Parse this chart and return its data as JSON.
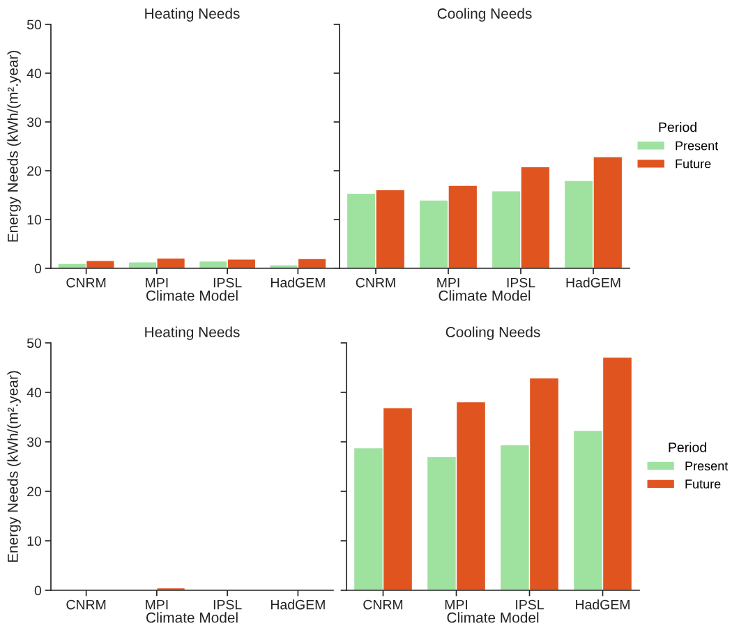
{
  "chart_data": [
    {
      "type": "bar",
      "title": "Heating Needs",
      "xlabel": "Climate Model",
      "ylabel": "Energy Needs (kWh/(m².year)",
      "categories": [
        "CNRM",
        "MPI",
        "IPSL",
        "HadGEM"
      ],
      "series": [
        {
          "color": "#9fe2a0",
          "values": [
            1.0,
            1.3,
            1.5,
            0.7
          ]
        },
        {
          "color": "#e05420",
          "values": [
            1.6,
            2.1,
            1.9,
            2.0
          ]
        }
      ],
      "ylim": [
        0,
        50
      ],
      "yticks": [
        0,
        10,
        20,
        30,
        40,
        50
      ],
      "grid": false
    },
    {
      "type": "bar",
      "title": "Cooling Needs",
      "xlabel": "Climate Model",
      "legend_title": "Period",
      "categories": [
        "CNRM",
        "MPI",
        "IPSL",
        "HadGEM"
      ],
      "series": [
        {
          "name": "Present",
          "color": "#9fe2a0",
          "values": [
            15.4,
            14.0,
            15.9,
            18.0
          ]
        },
        {
          "name": "Future",
          "color": "#e05420",
          "values": [
            16.1,
            17.0,
            20.8,
            22.9
          ]
        }
      ],
      "ylim": [
        0,
        50
      ],
      "yticks": [
        0,
        10,
        20,
        30,
        40,
        50
      ],
      "tick_labels": "x",
      "grid": false,
      "legend": "right"
    },
    {
      "type": "bar",
      "title": "Heating Needs",
      "xlabel": "Climate Model",
      "ylabel": "Energy Needs (kWh/(m².year)",
      "categories": [
        "CNRM",
        "MPI",
        "IPSL",
        "HadGEM"
      ],
      "series": [
        {
          "color": "#9fe2a0",
          "values": [
            0,
            0,
            0,
            0
          ]
        },
        {
          "color": "#e05420",
          "values": [
            0,
            0.5,
            0,
            0
          ]
        }
      ],
      "ylim": [
        0,
        50
      ],
      "yticks": [
        0,
        10,
        20,
        30,
        40,
        50
      ],
      "grid": false
    },
    {
      "type": "bar",
      "title": "Cooling Needs",
      "xlabel": "Climate Model",
      "legend_title": "Period",
      "categories": [
        "CNRM",
        "MPI",
        "IPSL",
        "HadGEM"
      ],
      "series": [
        {
          "name": "Present",
          "color": "#9fe2a0",
          "values": [
            28.8,
            27.0,
            29.4,
            32.3
          ]
        },
        {
          "name": "Future",
          "color": "#e05420",
          "values": [
            36.9,
            38.1,
            42.9,
            47.1
          ]
        }
      ],
      "ylim": [
        0,
        50
      ],
      "yticks": [
        0,
        10,
        20,
        30,
        40,
        50
      ],
      "tick_labels": "x",
      "grid": false,
      "legend": "right"
    }
  ]
}
